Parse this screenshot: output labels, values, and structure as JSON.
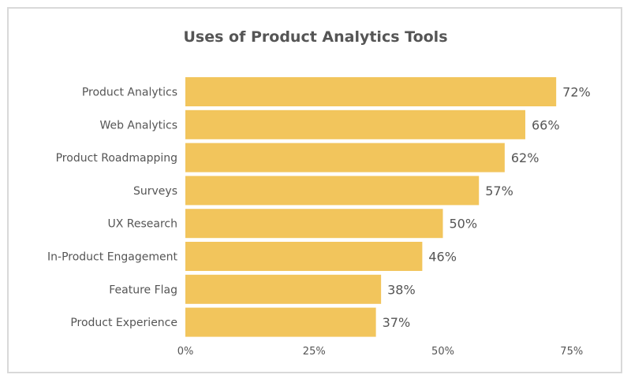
{
  "chart_data": {
    "type": "bar",
    "orientation": "horizontal",
    "title": "Uses of Product Analytics Tools",
    "categories": [
      "Product Analytics",
      "Web Analytics",
      "Product Roadmapping",
      "Surveys",
      "UX Research",
      "In-Product Engagement",
      "Feature Flag",
      "Product Experience"
    ],
    "values": [
      72,
      66,
      62,
      57,
      50,
      46,
      38,
      37
    ],
    "value_labels": [
      "72%",
      "66%",
      "62%",
      "57%",
      "50%",
      "46%",
      "38%",
      "37%"
    ],
    "xlim": [
      0,
      75
    ],
    "xticks": [
      0,
      25,
      50,
      75
    ],
    "xtick_labels": [
      "0%",
      "25%",
      "50%",
      "75%"
    ],
    "xlabel": "",
    "ylabel": "",
    "grid": false,
    "bar_color": "#f2c55c"
  }
}
